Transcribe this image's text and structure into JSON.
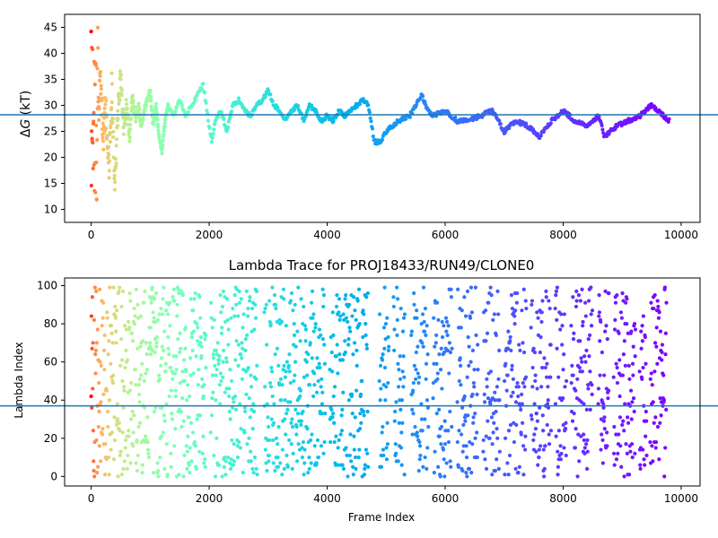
{
  "chart_data": [
    {
      "type": "scatter",
      "title": "",
      "xlabel": "",
      "ylabel": "ΔG (kT)",
      "ylabel_parts": {
        "delta": "Δ",
        "symbol": "G",
        "unit": " (kT)"
      },
      "xlim": [
        -450,
        10320
      ],
      "ylim": [
        7.5,
        47.5
      ],
      "xticks": [
        0,
        2000,
        4000,
        6000,
        8000,
        10000
      ],
      "xtick_labels": [
        "0",
        "2000",
        "4000",
        "6000",
        "8000",
        "10000"
      ],
      "yticks": [
        10,
        15,
        20,
        25,
        30,
        35,
        40,
        45
      ],
      "ytick_labels": [
        "10",
        "15",
        "20",
        "25",
        "30",
        "35",
        "40",
        "45"
      ],
      "hline": 28.2,
      "hline_color": "#1f77b4",
      "colormap": "rainbow",
      "color_by": "frame index (red at start, violet at end)",
      "grid": false,
      "series": [
        {
          "values_trace": [
            [
              0,
              10
            ],
            [
              15,
              42
            ],
            [
              30,
              20
            ],
            [
              45,
              38
            ],
            [
              60,
              15
            ],
            [
              75,
              33
            ],
            [
              90,
              45
            ],
            [
              105,
              30
            ],
            [
              120,
              26
            ],
            [
              150,
              36
            ],
            [
              200,
              22
            ],
            [
              250,
              30
            ],
            [
              300,
              18
            ],
            [
              350,
              34
            ],
            [
              400,
              15
            ],
            [
              450,
              28
            ],
            [
              500,
              36
            ],
            [
              550,
              26
            ],
            [
              600,
              30
            ],
            [
              650,
              24
            ],
            [
              700,
              32
            ],
            [
              750,
              27
            ],
            [
              800,
              30
            ],
            [
              850,
              26
            ],
            [
              900,
              29
            ],
            [
              950,
              31
            ],
            [
              1000,
              33
            ],
            [
              1050,
              26
            ],
            [
              1100,
              30
            ],
            [
              1150,
              24
            ],
            [
              1200,
              21
            ],
            [
              1250,
              27
            ],
            [
              1300,
              30
            ],
            [
              1400,
              28
            ],
            [
              1500,
              31
            ],
            [
              1600,
              28
            ],
            [
              1700,
              30
            ],
            [
              1800,
              32
            ],
            [
              1900,
              34
            ],
            [
              2000,
              26
            ],
            [
              2050,
              23
            ],
            [
              2100,
              27
            ],
            [
              2200,
              29
            ],
            [
              2300,
              25
            ],
            [
              2400,
              30
            ],
            [
              2500,
              31
            ],
            [
              2600,
              29
            ],
            [
              2700,
              28
            ],
            [
              2800,
              30
            ],
            [
              2900,
              31
            ],
            [
              3000,
              33
            ],
            [
              3100,
              30
            ],
            [
              3200,
              29
            ],
            [
              3300,
              27
            ],
            [
              3400,
              29
            ],
            [
              3500,
              30
            ],
            [
              3600,
              27
            ],
            [
              3700,
              30
            ],
            [
              3800,
              29
            ],
            [
              3900,
              27
            ],
            [
              4000,
              28
            ],
            [
              4100,
              27
            ],
            [
              4200,
              29
            ],
            [
              4300,
              28
            ],
            [
              4400,
              29
            ],
            [
              4500,
              30
            ],
            [
              4600,
              31
            ],
            [
              4700,
              30
            ],
            [
              4800,
              23
            ],
            [
              4900,
              23
            ],
            [
              5000,
              25
            ],
            [
              5200,
              27
            ],
            [
              5400,
              28
            ],
            [
              5600,
              32
            ],
            [
              5700,
              29
            ],
            [
              5800,
              28
            ],
            [
              6000,
              29
            ],
            [
              6200,
              27
            ],
            [
              6400,
              27
            ],
            [
              6600,
              28
            ],
            [
              6800,
              29
            ],
            [
              7000,
              25
            ],
            [
              7200,
              27
            ],
            [
              7400,
              26
            ],
            [
              7600,
              24
            ],
            [
              7800,
              27
            ],
            [
              8000,
              29
            ],
            [
              8200,
              27
            ],
            [
              8400,
              26
            ],
            [
              8600,
              28
            ],
            [
              8700,
              24
            ],
            [
              8900,
              26
            ],
            [
              9100,
              27
            ],
            [
              9300,
              28
            ],
            [
              9500,
              30
            ],
            [
              9700,
              28
            ],
            [
              9800,
              27
            ]
          ]
        }
      ]
    },
    {
      "type": "scatter",
      "title": "Lambda Trace for PROJ18433/RUN49/CLONE0",
      "xlabel": "Frame Index",
      "ylabel": "Lambda Index",
      "xlim": [
        -450,
        10320
      ],
      "ylim": [
        -5,
        104
      ],
      "xticks": [
        0,
        2000,
        4000,
        6000,
        8000,
        10000
      ],
      "xtick_labels": [
        "0",
        "2000",
        "4000",
        "6000",
        "8000",
        "10000"
      ],
      "yticks": [
        0,
        20,
        40,
        60,
        80,
        100
      ],
      "ytick_labels": [
        "0",
        "20",
        "40",
        "60",
        "80",
        "100"
      ],
      "hline": 37,
      "hline_color": "#1f77b4",
      "colormap": "rainbow",
      "color_by": "frame index (red at start, violet at end)",
      "grid": false,
      "value_range": [
        0,
        99
      ],
      "frame_range": [
        0,
        9800
      ]
    }
  ]
}
